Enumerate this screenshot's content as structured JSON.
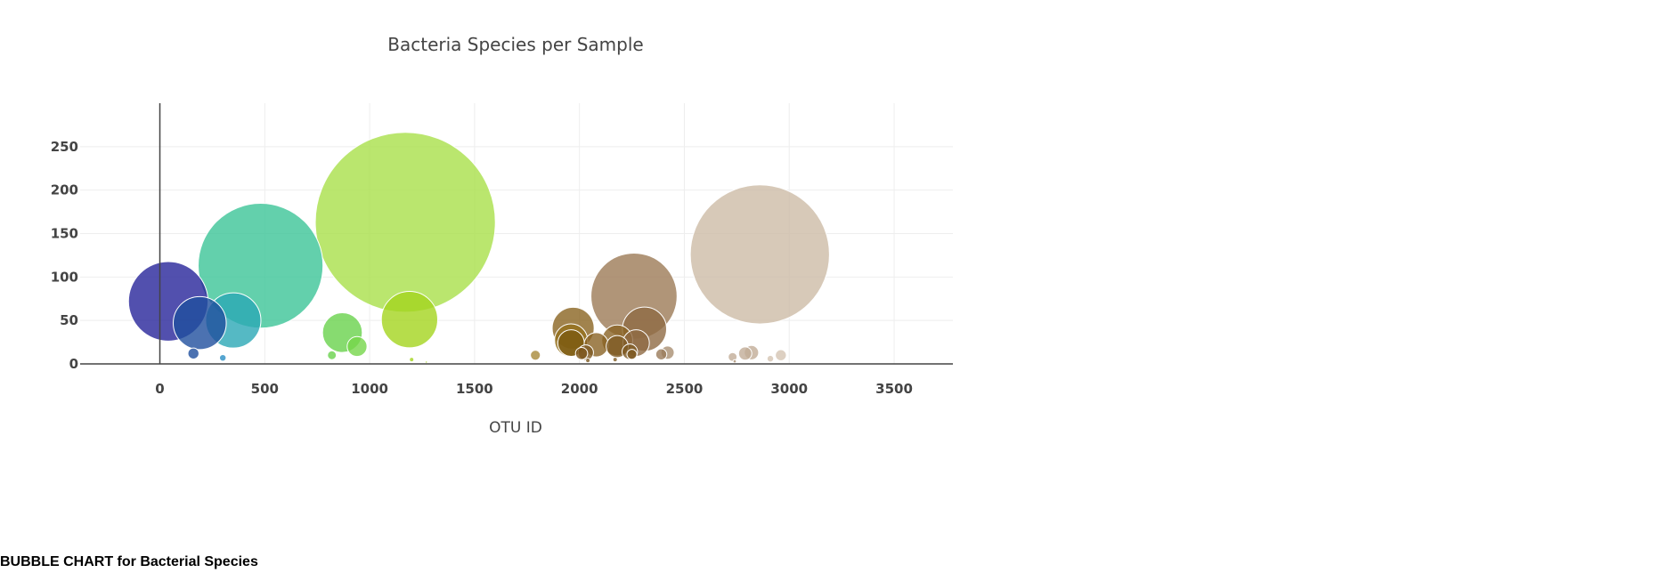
{
  "caption": "BUBBLE CHART for Bacterial Species",
  "chart_data": {
    "type": "scatter",
    "title": "Bacteria Species per Sample",
    "xlabel": "OTU ID",
    "ylabel": "",
    "xlim": [
      -380,
      3780
    ],
    "ylim": [
      0,
      300
    ],
    "x_ticks": [
      0,
      500,
      1000,
      1500,
      2000,
      2500,
      3000,
      3500
    ],
    "y_ticks": [
      0,
      50,
      100,
      150,
      200,
      250
    ],
    "grid": true,
    "legend": "none",
    "series": [
      {
        "colors": [
          "#27249a",
          "#1f4f9e",
          "#2b8fc4",
          "#17a8a3",
          "#3cc497",
          "#8fda5a",
          "#69d24c",
          "#b3e04a",
          "#a4d41e",
          "#b59a5a",
          "#95763a",
          "#8a6324",
          "#7e5a23",
          "#8f6a44",
          "#a98f72",
          "#c2ad97",
          "#d5c4b3"
        ],
        "points": [
          {
            "x": 40,
            "y": 72,
            "size": 72,
            "color": "#27249a"
          },
          {
            "x": 160,
            "y": 12,
            "size": 10,
            "color": "#1f4f9e"
          },
          {
            "x": 190,
            "y": 47,
            "size": 48,
            "color": "#1f4f9e"
          },
          {
            "x": 300,
            "y": 7,
            "size": 6,
            "color": "#2b8fc4"
          },
          {
            "x": 350,
            "y": 50,
            "size": 50,
            "color": "#2ba8b5"
          },
          {
            "x": 480,
            "y": 113,
            "size": 113,
            "color": "#3cc497"
          },
          {
            "x": 820,
            "y": 10,
            "size": 8,
            "color": "#69d24c"
          },
          {
            "x": 870,
            "y": 36,
            "size": 36,
            "color": "#69d24c"
          },
          {
            "x": 940,
            "y": 20,
            "size": 18,
            "color": "#76d64a"
          },
          {
            "x": 1170,
            "y": 163,
            "size": 163,
            "color": "#a9e04a"
          },
          {
            "x": 1190,
            "y": 51,
            "size": 51,
            "color": "#a4d41e"
          },
          {
            "x": 1200,
            "y": 5,
            "size": 4,
            "color": "#a4d41e"
          },
          {
            "x": 1270,
            "y": 2,
            "size": 2,
            "color": "#a4d41e"
          },
          {
            "x": 1790,
            "y": 10,
            "size": 9,
            "color": "#a88a3a"
          },
          {
            "x": 1970,
            "y": 41,
            "size": 38,
            "color": "#8a6420"
          },
          {
            "x": 1960,
            "y": 27,
            "size": 30,
            "color": "#95701d"
          },
          {
            "x": 1960,
            "y": 24,
            "size": 24,
            "color": "#7c5a10"
          },
          {
            "x": 2010,
            "y": 12,
            "size": 11,
            "color": "#7a5418"
          },
          {
            "x": 2030,
            "y": 13,
            "size": 14,
            "color": "#7e5a23"
          },
          {
            "x": 2040,
            "y": 4,
            "size": 4,
            "color": "#7e5a23"
          },
          {
            "x": 2080,
            "y": 22,
            "size": 22,
            "color": "#8a6324"
          },
          {
            "x": 2180,
            "y": 27,
            "size": 28,
            "color": "#8a6324"
          },
          {
            "x": 2180,
            "y": 20,
            "size": 20,
            "color": "#7e5a23"
          },
          {
            "x": 2170,
            "y": 5,
            "size": 4,
            "color": "#7e5a23"
          },
          {
            "x": 2240,
            "y": 14,
            "size": 14,
            "color": "#7e5a23"
          },
          {
            "x": 2250,
            "y": 11,
            "size": 9,
            "color": "#7e5a23"
          },
          {
            "x": 2260,
            "y": 78,
            "size": 78,
            "color": "#9c7a56"
          },
          {
            "x": 2310,
            "y": 40,
            "size": 40,
            "color": "#8f6a44"
          },
          {
            "x": 2270,
            "y": 24,
            "size": 24,
            "color": "#8f6a44"
          },
          {
            "x": 2390,
            "y": 11,
            "size": 10,
            "color": "#9a7a5a"
          },
          {
            "x": 2420,
            "y": 13,
            "size": 12,
            "color": "#a98f72"
          },
          {
            "x": 2730,
            "y": 8,
            "size": 8,
            "color": "#c2ad97"
          },
          {
            "x": 2740,
            "y": 3,
            "size": 3,
            "color": "#a98f72"
          },
          {
            "x": 2790,
            "y": 12,
            "size": 12,
            "color": "#c2ad97"
          },
          {
            "x": 2820,
            "y": 13,
            "size": 13,
            "color": "#c2ad97"
          },
          {
            "x": 2860,
            "y": 126,
            "size": 126,
            "color": "#cdbba6"
          },
          {
            "x": 2910,
            "y": 6,
            "size": 6,
            "color": "#d5c4b3"
          },
          {
            "x": 2960,
            "y": 10,
            "size": 10,
            "color": "#d5c4b3"
          }
        ]
      }
    ]
  }
}
